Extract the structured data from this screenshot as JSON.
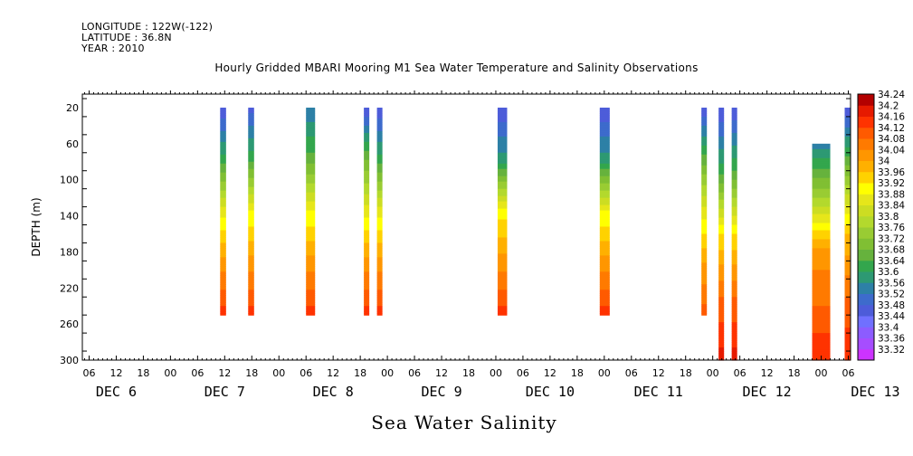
{
  "meta": {
    "longitude": "LONGITUDE : 122W(-122)",
    "latitude": "LATITUDE : 36.8N",
    "year": "YEAR : 2010"
  },
  "chart_data": {
    "type": "heatmap",
    "title": "Hourly Gridded MBARI Mooring M1 Sea Water Temperature and Salinity Observations",
    "main_label": "Sea Water Salinity",
    "xlabel": "",
    "ylabel": "DEPTH (m)",
    "x_tick_labels": [
      "06",
      "12",
      "18",
      "00",
      "06",
      "12",
      "18",
      "00",
      "06",
      "12",
      "18",
      "00",
      "06",
      "12",
      "18",
      "00",
      "06",
      "12",
      "18",
      "00",
      "06",
      "12",
      "18",
      "00",
      "06",
      "12",
      "18",
      "00",
      "06"
    ],
    "x_day_labels": [
      "DEC 6",
      "DEC 7",
      "DEC 8",
      "DEC 9",
      "DEC 10",
      "DEC 11",
      "DEC 12",
      "DEC 13"
    ],
    "xlim_hours_since_dec6_00": [
      4.5,
      174.5
    ],
    "y_tick_labels": [
      "20",
      "60",
      "100",
      "140",
      "180",
      "220",
      "260",
      "300"
    ],
    "ylim": [
      300,
      0
    ],
    "y_reversed": true,
    "colorbar": {
      "levels": [
        "33.32",
        "33.36",
        "33.4",
        "33.44",
        "33.48",
        "33.52",
        "33.56",
        "33.6",
        "33.64",
        "33.68",
        "33.72",
        "33.76",
        "33.8",
        "33.84",
        "33.88",
        "33.92",
        "33.96",
        "34",
        "34.04",
        "34.08",
        "34.12",
        "34.16",
        "34.2",
        "34.24"
      ],
      "colors": [
        "#cc33ff",
        "#a64dff",
        "#8c5cff",
        "#7070ff",
        "#4d5cd9",
        "#3d6bcc",
        "#2d80a6",
        "#2d9973",
        "#33a64d",
        "#66b23d",
        "#80bf33",
        "#99cc33",
        "#b3d92d",
        "#ccdd22",
        "#e6e61a",
        "#ffff00",
        "#ffd200",
        "#ffb000",
        "#ff9600",
        "#ff7a00",
        "#ff5a00",
        "#ff3300",
        "#e61a00",
        "#b30000"
      ]
    },
    "columns": [
      {
        "day_hour": "Dec 7 11h",
        "hour_start": 35.0,
        "hour_end": 36.3,
        "top": 20,
        "bottom": 250,
        "profile": [
          33.48,
          33.66,
          33.9,
          34.06,
          34.18
        ]
      },
      {
        "day_hour": "Dec 7 17h",
        "hour_start": 41.2,
        "hour_end": 42.5,
        "top": 20,
        "bottom": 250,
        "profile": [
          33.5,
          33.67,
          33.92,
          34.06,
          34.18
        ]
      },
      {
        "day_hour": "Dec 8 06h",
        "hour_start": 54.0,
        "hour_end": 56.0,
        "top": 20,
        "bottom": 250,
        "profile": [
          33.56,
          33.7,
          33.92,
          34.06,
          34.18
        ]
      },
      {
        "day_hour": "Dec 8 18h",
        "hour_start": 66.8,
        "hour_end": 68.0,
        "top": 20,
        "bottom": 250,
        "profile": [
          33.48,
          33.72,
          33.9,
          34.06,
          34.18
        ]
      },
      {
        "day_hour": "Dec 8 21h",
        "hour_start": 69.7,
        "hour_end": 70.9,
        "top": 20,
        "bottom": 250,
        "profile": [
          33.48,
          33.66,
          33.9,
          34.06,
          34.18
        ]
      },
      {
        "day_hour": "Dec 10 01h",
        "hour_start": 96.4,
        "hour_end": 98.5,
        "top": 20,
        "bottom": 250,
        "profile": [
          33.48,
          33.62,
          33.94,
          34.06,
          34.18
        ]
      },
      {
        "day_hour": "Dec 11 00h",
        "hour_start": 119.0,
        "hour_end": 121.2,
        "top": 20,
        "bottom": 250,
        "profile": [
          33.48,
          33.62,
          33.92,
          34.06,
          34.18
        ]
      },
      {
        "day_hour": "Dec 11 22h",
        "hour_start": 141.5,
        "hour_end": 142.7,
        "top": 20,
        "bottom": 250,
        "profile": [
          33.48,
          33.7,
          33.9,
          34.04,
          34.14
        ]
      },
      {
        "day_hour": "Dec 12 03h",
        "hour_start": 145.3,
        "hour_end": 146.5,
        "top": 20,
        "bottom": 300,
        "profile": [
          33.48,
          33.66,
          33.96,
          34.12,
          34.22
        ]
      },
      {
        "day_hour": "Dec 12 06h",
        "hour_start": 148.2,
        "hour_end": 149.4,
        "top": 20,
        "bottom": 300,
        "profile": [
          33.48,
          33.68,
          33.96,
          34.12,
          34.22
        ]
      },
      {
        "day_hour": "Dec 12 23h",
        "hour_start": 166.0,
        "hour_end": 170.0,
        "top": 60,
        "bottom": 300,
        "profile": [
          33.58,
          33.8,
          34.06,
          34.12,
          34.2
        ]
      },
      {
        "day_hour": "Dec 13 05h",
        "hour_start": 173.2,
        "hour_end": 174.5,
        "top": 20,
        "bottom": 300,
        "profile": [
          33.48,
          33.74,
          34.0,
          34.12,
          34.2
        ]
      }
    ],
    "grid": false,
    "legend_placement": "right"
  }
}
